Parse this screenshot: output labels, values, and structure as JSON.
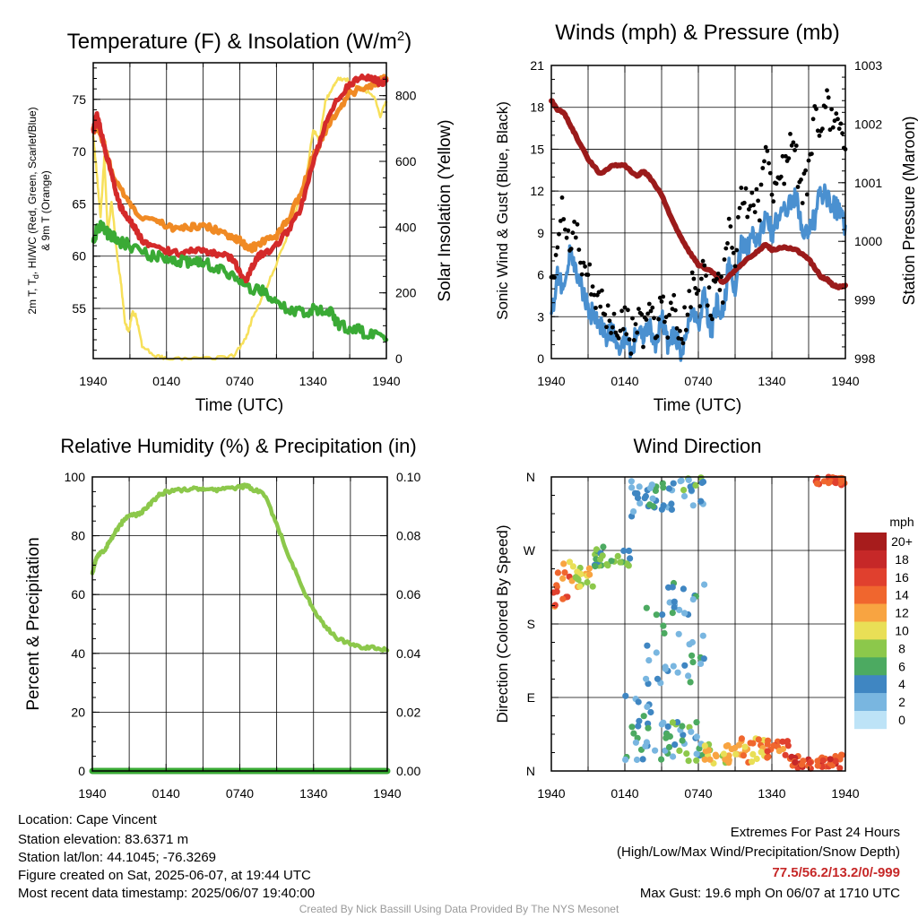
{
  "colors": {
    "temp": "#d42a2a",
    "dewpoint": "#3aaa35",
    "heat_index": "#f08a24",
    "temp_9m": "#f08a24",
    "insolation": "#f7e05a",
    "wind": "#4a90d0",
    "gust": "#000000",
    "pressure": "#9b1b1b",
    "rh": "#8cc84b",
    "precip": "#3aaa35",
    "extremes": "#c62828",
    "credit": "#9a9a9a"
  },
  "time_ticks": [
    "1940",
    "0140",
    "0740",
    "1340",
    "1940"
  ],
  "chart_data": [
    {
      "type": "line",
      "title": "Temperature (F) & Insolation (W/m²)",
      "title_main": "Temperature (F) & Insolation (W/m",
      "title_sup": "2",
      "title_tail": ")",
      "xlabel": "Time (UTC)",
      "ylabel_lines": [
        "2m T, Tₐ, HI/WC (Red, Green, Scarlet/Blue)",
        "& 9m T (Orange)"
      ],
      "ylabel_line1_main": "2m T, T",
      "ylabel_line1_sub": "d",
      "ylabel_line1_tail": ", HI/WC (Red, Green, Scarlet/Blue)",
      "ylabel_line2": "& 9m T (Orange)",
      "y2label": "Solar Insolation (Yellow)",
      "xlim": [
        0,
        24
      ],
      "ylim": [
        50.2,
        78.5
      ],
      "y2lim": [
        0,
        900
      ],
      "yticks": [
        55,
        60,
        65,
        70,
        75
      ],
      "y2ticks": [
        0,
        200,
        400,
        600,
        800
      ],
      "series": [
        {
          "key": "temp_9m",
          "x": [
            0,
            0.3,
            0.8,
            1.5,
            2.5,
            3.5,
            5,
            6,
            7,
            8,
            9,
            10,
            11,
            11.5,
            12,
            12.5,
            13,
            13.5,
            14,
            15,
            16,
            17,
            18,
            19,
            20,
            21,
            22,
            23,
            23.5,
            24
          ],
          "values": [
            72,
            72.5,
            71,
            68,
            66,
            64,
            63.5,
            63,
            62.5,
            62.8,
            63,
            62.5,
            62,
            61.8,
            61.5,
            61,
            60.8,
            61,
            61.5,
            62,
            63.5,
            66,
            69.5,
            72,
            74,
            75.5,
            76,
            76.5,
            76.8,
            77
          ]
        },
        {
          "key": "temp",
          "x": [
            0,
            0.3,
            0.6,
            1,
            1.5,
            2,
            2.5,
            3,
            3.5,
            4,
            5,
            6,
            7,
            8,
            9,
            10,
            11,
            11.5,
            12,
            12.5,
            13,
            13.5,
            14,
            15,
            16,
            17,
            18,
            19,
            20,
            21,
            22,
            23,
            23.5,
            24
          ],
          "values": [
            72,
            73.5,
            72,
            70,
            68,
            65.5,
            64,
            63.5,
            62.5,
            61.5,
            61,
            60.5,
            60.3,
            60.5,
            60.5,
            60.2,
            60,
            59.5,
            58.5,
            57.5,
            59,
            60,
            60.3,
            61,
            62.5,
            64.5,
            69,
            72.5,
            75,
            76.5,
            77,
            77,
            76.5,
            76.8
          ]
        },
        {
          "key": "dewpoint",
          "x": [
            0,
            0.3,
            0.6,
            1,
            1.5,
            2,
            3,
            4,
            5,
            6,
            7,
            8,
            9,
            10,
            11,
            12,
            13,
            14,
            15,
            16,
            17,
            18,
            19,
            19.5,
            20,
            21,
            22,
            23,
            24
          ],
          "values": [
            61,
            62.5,
            63,
            62.3,
            62,
            61.5,
            61,
            60.5,
            60,
            59.8,
            59.5,
            59.5,
            59.3,
            59,
            58.5,
            57.5,
            57,
            56.5,
            55.5,
            55,
            54.8,
            54.8,
            55,
            54.8,
            53.5,
            53,
            52.8,
            52.5,
            52
          ]
        },
        {
          "key": "insolation",
          "x": [
            0,
            0.3,
            0.6,
            0.9,
            1.2,
            1.5,
            2,
            2.3,
            2.6,
            2.9,
            3.2,
            3.5,
            4,
            5,
            6,
            8,
            10,
            11.5,
            12.5,
            13,
            14,
            15,
            16,
            17,
            17.5,
            18,
            18.5,
            19,
            19.5,
            20,
            20.5,
            21,
            22,
            23,
            23.5,
            24
          ],
          "values": [
            680,
            560,
            430,
            610,
            380,
            480,
            300,
            220,
            110,
            80,
            140,
            130,
            40,
            10,
            0,
            0,
            0,
            10,
            60,
            120,
            200,
            290,
            380,
            500,
            560,
            700,
            660,
            780,
            820,
            850,
            850,
            845,
            820,
            800,
            740,
            780
          ]
        }
      ]
    },
    {
      "type": "line",
      "title": "Winds (mph) & Pressure (mb)",
      "xlabel": "Time (UTC)",
      "ylabel": "Sonic Wind & Gust (Blue, Black)",
      "y2label": "Station Pressure (Maroon)",
      "xlim": [
        0,
        24
      ],
      "ylim": [
        0,
        21
      ],
      "y2lim": [
        998,
        1003
      ],
      "yticks": [
        0,
        3,
        6,
        9,
        12,
        15,
        18,
        21
      ],
      "y2ticks": [
        998,
        999,
        1000,
        1001,
        1002,
        1003
      ],
      "series": [
        {
          "key": "wind",
          "x": [
            0,
            0.5,
            1,
            1.5,
            2,
            2.5,
            3,
            3.5,
            4,
            4.5,
            5,
            5.5,
            6,
            6.5,
            7,
            7.5,
            8,
            8.5,
            9,
            9.5,
            10,
            10.5,
            11,
            11.5,
            12,
            12.5,
            13,
            13.5,
            14,
            14.5,
            15,
            15.5,
            16,
            16.5,
            17,
            17.5,
            18,
            18.5,
            19,
            19.5,
            20,
            20.5,
            21,
            21.5,
            22,
            22.5,
            23,
            23.5,
            24
          ],
          "values": [
            3,
            6,
            5,
            7.5,
            6,
            5,
            3.5,
            3,
            2.5,
            1.5,
            2,
            1,
            1.5,
            0.5,
            2,
            1.5,
            2.5,
            1,
            3,
            1,
            2,
            0.5,
            1.5,
            3,
            2.5,
            5,
            1.5,
            4,
            3,
            7,
            5,
            8,
            8,
            9,
            8.5,
            10.5,
            9,
            10,
            10.5,
            11,
            11.5,
            9,
            9.5,
            10,
            12,
            11.5,
            11,
            10.5,
            9.5
          ]
        },
        {
          "key": "pressure",
          "x": [
            0,
            0.5,
            1,
            1.5,
            2,
            3,
            4,
            5,
            6,
            7,
            7.5,
            8,
            9,
            10,
            11,
            12,
            13,
            14,
            15,
            16,
            17,
            17.5,
            18,
            19,
            20,
            21,
            22,
            22.5,
            23,
            23.5,
            24
          ],
          "values": [
            1002.4,
            1002.25,
            1002.2,
            1002.0,
            1001.8,
            1001.4,
            1001.15,
            1001.3,
            1001.3,
            1001.1,
            1001.2,
            1001.1,
            1000.8,
            1000.3,
            999.9,
            999.6,
            999.5,
            999.3,
            999.5,
            999.7,
            999.85,
            999.95,
            999.85,
            999.9,
            999.85,
            999.7,
            999.4,
            999.35,
            999.25,
            999.22,
            999.25
          ]
        },
        {
          "key": "gust",
          "x": [
            0,
            0.5,
            1,
            1.5,
            2,
            2.5,
            3,
            3.5,
            4,
            4.5,
            5,
            5.5,
            6,
            6.5,
            7,
            7.5,
            8,
            8.5,
            9,
            9.5,
            10,
            10.5,
            11,
            11.5,
            12,
            12.5,
            13,
            13.5,
            14,
            14.5,
            15,
            15.5,
            16,
            16.5,
            17,
            17.5,
            18,
            18.5,
            19,
            19.5,
            20,
            20.5,
            21,
            21.5,
            22,
            22.5,
            23,
            23.5,
            24
          ],
          "values": [
            5,
            9,
            11,
            8,
            9,
            7,
            6,
            5,
            4,
            3,
            3,
            2,
            3,
            1.5,
            3,
            2,
            4,
            2,
            5,
            2,
            4,
            1,
            3,
            5,
            4,
            7,
            3,
            6,
            5,
            9,
            7,
            11,
            11,
            12,
            10,
            15,
            12,
            14,
            13,
            15,
            14,
            12,
            13,
            17,
            17,
            18,
            17,
            16,
            15
          ]
        }
      ]
    },
    {
      "type": "line",
      "title": "Relative Humidity (%) & Precipitation (in)",
      "xlabel": "",
      "ylabel": "Percent & Precipitation",
      "xlim": [
        0,
        24
      ],
      "ylim": [
        0,
        100
      ],
      "y2lim": [
        0,
        0.1
      ],
      "yticks": [
        0,
        20,
        40,
        60,
        80,
        100
      ],
      "y2ticks": [
        "0.00",
        "0.02",
        "0.04",
        "0.06",
        "0.08",
        "0.10"
      ],
      "series": [
        {
          "key": "rh",
          "x": [
            0,
            0.3,
            0.6,
            1,
            1.5,
            2,
            2.5,
            3,
            3.5,
            4,
            4.5,
            5,
            5.5,
            6,
            7,
            8,
            9,
            10,
            11,
            12,
            12.5,
            13,
            14,
            15,
            16,
            17,
            18,
            19,
            20,
            21,
            22,
            23,
            24
          ],
          "values": [
            67,
            72,
            74,
            75,
            79,
            82,
            85,
            87,
            87,
            88,
            90,
            92,
            94,
            95,
            95.5,
            96,
            96,
            95.5,
            96,
            96.5,
            97,
            96,
            94,
            84,
            73,
            63,
            55,
            49,
            45,
            43,
            42,
            42,
            41
          ]
        },
        {
          "key": "precip",
          "x": [
            0,
            24
          ],
          "values": [
            0,
            0
          ]
        }
      ]
    },
    {
      "type": "scatter",
      "title": "Wind Direction",
      "xlabel": "",
      "ylabel": "Direction (Colored By Speed)",
      "xlim": [
        0,
        24
      ],
      "ylim": [
        0,
        360
      ],
      "yticks": [
        "N",
        "E",
        "S",
        "W",
        "N"
      ],
      "legend_title": "mph",
      "legend_labels": [
        "20+",
        "18",
        "16",
        "14",
        "12",
        "10",
        "8",
        "6",
        "4",
        "2",
        "0"
      ],
      "legend_colors": [
        "#a71c1c",
        "#c62828",
        "#e0402e",
        "#f0662e",
        "#f8a441",
        "#e9df56",
        "#8cc84b",
        "#4caa61",
        "#3f86c2",
        "#79b6e0",
        "#bde3f7"
      ],
      "bands": [
        {
          "x0": 0,
          "x1": 1.5,
          "y0": 200,
          "y1": 255,
          "bins": [
            6,
            7,
            8
          ]
        },
        {
          "x0": 1.5,
          "x1": 3.5,
          "y0": 225,
          "y1": 260,
          "bins": [
            4,
            5,
            6
          ]
        },
        {
          "x0": 3.5,
          "x1": 6.5,
          "y0": 250,
          "y1": 275,
          "bins": [
            2,
            3,
            4
          ]
        },
        {
          "x0": 6.5,
          "x1": 7.5,
          "y0": 310,
          "y1": 355,
          "bins": [
            1,
            2
          ]
        },
        {
          "x0": 7.5,
          "x1": 10,
          "y0": 320,
          "y1": 355,
          "bins": [
            1,
            2,
            3
          ]
        },
        {
          "x0": 10.5,
          "x1": 12.5,
          "y0": 325,
          "y1": 360,
          "bins": [
            1,
            2,
            4
          ]
        },
        {
          "x0": 7.5,
          "x1": 12.5,
          "y0": 90,
          "y1": 230,
          "bins": [
            1,
            2,
            3
          ]
        },
        {
          "x0": 6,
          "x1": 9.5,
          "y0": 10,
          "y1": 95,
          "bins": [
            1,
            2,
            3
          ]
        },
        {
          "x0": 9.5,
          "x1": 12.5,
          "y0": 10,
          "y1": 60,
          "bins": [
            1,
            2,
            3,
            4
          ]
        },
        {
          "x0": 12.5,
          "x1": 15,
          "y0": 5,
          "y1": 35,
          "bins": [
            4,
            5,
            6
          ]
        },
        {
          "x0": 15,
          "x1": 17.5,
          "y0": 10,
          "y1": 40,
          "bins": [
            5,
            6,
            7
          ]
        },
        {
          "x0": 17.5,
          "x1": 19.5,
          "y0": 15,
          "y1": 40,
          "bins": [
            6,
            7,
            8
          ]
        },
        {
          "x0": 19.5,
          "x1": 24,
          "y0": 2,
          "y1": 20,
          "bins": [
            7,
            8,
            9
          ]
        },
        {
          "x0": 21.5,
          "x1": 24,
          "y0": 350,
          "y1": 360,
          "bins": [
            7,
            8
          ]
        }
      ]
    }
  ],
  "footer": {
    "location": "Location: Cape Vincent",
    "elevation": "Station elevation: 83.6371 m",
    "latlon": "Station lat/lon: 44.1045; -76.3269",
    "created": "Figure created on Sat, 2025-06-07, at 19:44 UTC",
    "recent": "Most recent data timestamp: 2025/06/07 19:40:00",
    "extremes_title": "Extremes For Past 24 Hours",
    "extremes_sub": "(High/Low/Max Wind/Precipitation/Snow Depth)",
    "extremes_values": "77.5/56.2/13.2/0/-999",
    "max_gust": "Max Gust: 19.6 mph On 06/07 at 1710 UTC",
    "credit": "Created By Nick Bassill Using Data Provided By The NYS Mesonet"
  }
}
